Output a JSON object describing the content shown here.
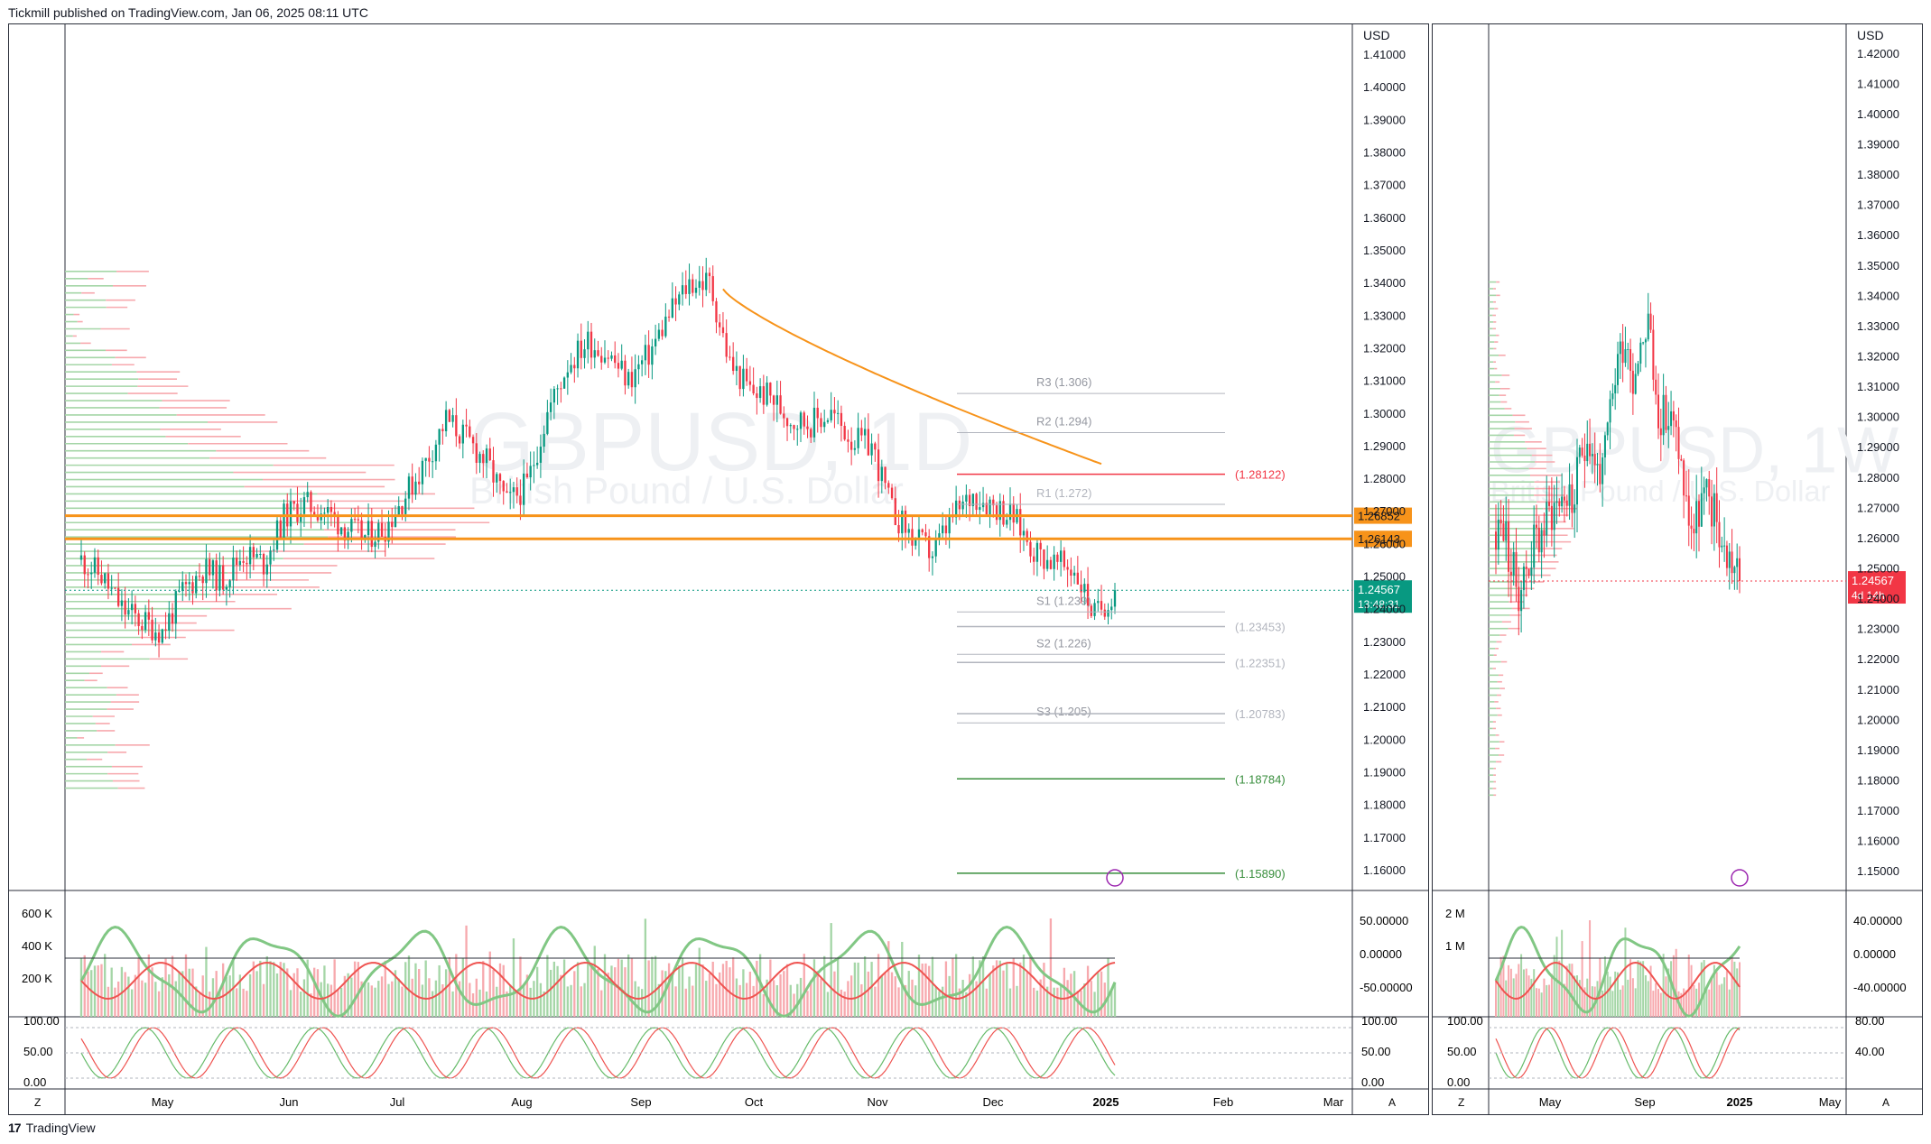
{
  "header": {
    "published": "Tickmill published on TradingView.com, Jan 06, 2025 08:11 UTC"
  },
  "footer": {
    "brand": "TradingView",
    "logo": "17"
  },
  "left": {
    "currency": "USD",
    "watermark_symbol": "GBPUSD, 1D",
    "watermark_name": "British Pound / U.S. Dollar",
    "price_ticks": [
      "1.41000",
      "1.40000",
      "1.39000",
      "1.38000",
      "1.37000",
      "1.36000",
      "1.35000",
      "1.34000",
      "1.33000",
      "1.32000",
      "1.31000",
      "1.30000",
      "1.29000",
      "1.28000",
      "1.27000",
      "1.26000",
      "1.25000",
      "1.24000",
      "1.23000",
      "1.22000",
      "1.21000",
      "1.20000",
      "1.19000",
      "1.18000",
      "1.17000",
      "1.16000"
    ],
    "price_tags": [
      {
        "label": "1.26852",
        "price": 1.26852,
        "color": "#f7931a"
      },
      {
        "label": "1.26143",
        "price": 1.26143,
        "color": "#f7931a"
      }
    ],
    "last_price": {
      "label": "1.24567",
      "countdown": "13:48:31",
      "color": "#089981",
      "price": 1.24567
    },
    "pivots": [
      {
        "label": "R3 (1.306)",
        "price": 1.306,
        "color": "#9598a1"
      },
      {
        "label": "R2 (1.294)",
        "price": 1.294,
        "color": "#9598a1"
      },
      {
        "label": "R1 (1.272)",
        "price": 1.272,
        "color": "#b2b5be"
      },
      {
        "label": "S1 (1.239)",
        "price": 1.239,
        "color": "#9598a1"
      },
      {
        "label": "S2 (1.226)",
        "price": 1.226,
        "color": "#9598a1"
      },
      {
        "label": "S3 (1.205)",
        "price": 1.205,
        "color": "#9598a1"
      }
    ],
    "levels": [
      {
        "label": "(1.28122)",
        "price": 1.28122,
        "color": "#f23645"
      },
      {
        "label": "(1.23453)",
        "price": 1.23453,
        "color": "#b2b5be"
      },
      {
        "label": "(1.22351)",
        "price": 1.22351,
        "color": "#b2b5be"
      },
      {
        "label": "(1.20783)",
        "price": 1.20783,
        "color": "#b2b5be"
      },
      {
        "label": "(1.18784)",
        "price": 1.18784,
        "color": "#388e3c"
      },
      {
        "label": "(1.15890)",
        "price": 1.1589,
        "color": "#388e3c"
      }
    ],
    "x_labels": [
      "May",
      "Jun",
      "Jul",
      "Aug",
      "Sep",
      "Oct",
      "Nov",
      "Dec",
      "2025",
      "Feb",
      "Mar"
    ],
    "vol_ticks": [
      "600 K",
      "400 K",
      "200 K"
    ],
    "osc_ticks": [
      "50.00000",
      "0.00000",
      "-50.00000"
    ],
    "stoch_ticks": [
      "100.00",
      "50.00",
      "0.00"
    ],
    "stoch_right": [
      "100.00",
      "50.00",
      "0.00"
    ]
  },
  "right": {
    "currency": "USD",
    "watermark_symbol": "GBPUSD, 1W",
    "watermark_name": "British Pound / U.S. Dollar",
    "price_ticks": [
      "1.42000",
      "1.41000",
      "1.40000",
      "1.39000",
      "1.38000",
      "1.37000",
      "1.36000",
      "1.35000",
      "1.34000",
      "1.33000",
      "1.32000",
      "1.31000",
      "1.30000",
      "1.29000",
      "1.28000",
      "1.27000",
      "1.26000",
      "1.25000",
      "1.24000",
      "1.23000",
      "1.22000",
      "1.21000",
      "1.20000",
      "1.19000",
      "1.18000",
      "1.17000",
      "1.16000",
      "1.15000"
    ],
    "last_price": {
      "label": "1.24567",
      "countdown": "4d 14h",
      "color": "#f23645",
      "price": 1.24567
    },
    "x_labels": [
      "May",
      "Sep",
      "2025",
      "May"
    ],
    "vol_ticks": [
      "2 M",
      "1 M"
    ],
    "osc_ticks": [
      "40.00000",
      "0.00000",
      "-40.00000"
    ],
    "stoch_ticks": [
      "100.00",
      "50.00",
      "0.00"
    ],
    "stoch_right": [
      "80.00",
      "40.00"
    ]
  },
  "colors": {
    "up": "#089981",
    "down": "#f23645",
    "ma": "#f7931a",
    "vp_up": "#66bb6a",
    "vp_down": "#f7525f"
  },
  "chart_data": [
    {
      "type": "candlestick",
      "symbol": "GBPUSD",
      "timeframe": "1D",
      "currency": "USD",
      "ylim": [
        1.155,
        1.415
      ],
      "x_labels": [
        "May",
        "Jun",
        "Jul",
        "Aug",
        "Sep",
        "Oct",
        "Nov",
        "Dec",
        "2025",
        "Feb",
        "Mar"
      ],
      "close_path": [
        [
          "Apr",
          1.255
        ],
        [
          "Apr",
          1.25
        ],
        [
          "Apr",
          1.24
        ],
        [
          "Apr",
          1.236
        ],
        [
          "Apr",
          1.233
        ],
        [
          "May",
          1.245
        ],
        [
          "May",
          1.252
        ],
        [
          "May",
          1.249
        ],
        [
          "May",
          1.257
        ],
        [
          "May",
          1.254
        ],
        [
          "Jun",
          1.268
        ],
        [
          "Jun",
          1.272
        ],
        [
          "Jun",
          1.27
        ],
        [
          "Jun",
          1.265
        ],
        [
          "Jun",
          1.262
        ],
        [
          "Jul",
          1.265
        ],
        [
          "Jul",
          1.275
        ],
        [
          "Jul",
          1.285
        ],
        [
          "Jul",
          1.298
        ],
        [
          "Jul",
          1.292
        ],
        [
          "Aug",
          1.285
        ],
        [
          "Aug",
          1.272
        ],
        [
          "Aug",
          1.278
        ],
        [
          "Aug",
          1.3
        ],
        [
          "Aug",
          1.315
        ],
        [
          "Aug",
          1.322
        ],
        [
          "Sep",
          1.318
        ],
        [
          "Sep",
          1.31
        ],
        [
          "Sep",
          1.318
        ],
        [
          "Sep",
          1.33
        ],
        [
          "Sep",
          1.34
        ],
        [
          "Oct",
          1.34
        ],
        [
          "Oct",
          1.315
        ],
        [
          "Oct",
          1.307
        ],
        [
          "Oct",
          1.305
        ],
        [
          "Oct",
          1.298
        ],
        [
          "Oct",
          1.297
        ],
        [
          "Oct",
          1.3
        ],
        [
          "Nov",
          1.292
        ],
        [
          "Nov",
          1.29
        ],
        [
          "Nov",
          1.27
        ],
        [
          "Nov",
          1.262
        ],
        [
          "Nov",
          1.257
        ],
        [
          "Nov",
          1.268
        ],
        [
          "Dec",
          1.275
        ],
        [
          "Dec",
          1.272
        ],
        [
          "Dec",
          1.268
        ],
        [
          "Dec",
          1.258
        ],
        [
          "Dec",
          1.254
        ],
        [
          "Dec",
          1.252
        ],
        [
          "2025",
          1.238
        ],
        [
          "2025",
          1.24567
        ]
      ],
      "moving_average": [
        [
          1.335,
          "Oct"
        ],
        [
          1.3,
          "Nov"
        ],
        [
          1.284,
          "Dec"
        ]
      ],
      "pivots": {
        "R3": 1.306,
        "R2": 1.294,
        "R1": 1.272,
        "S1": 1.239,
        "S2": 1.226,
        "S3": 1.205
      },
      "levels": [
        1.28122,
        1.26852,
        1.26143,
        1.23453,
        1.22351,
        1.20783,
        1.18784,
        1.1589
      ],
      "last_price": 1.24567,
      "volume_axis": [
        "600 K",
        "400 K",
        "200 K"
      ],
      "oscillator_axis": [
        "50.00000",
        "0.00000",
        "-50.00000"
      ],
      "stochastic_axis": [
        "100.00",
        "50.00",
        "0.00"
      ]
    },
    {
      "type": "candlestick",
      "symbol": "GBPUSD",
      "timeframe": "1W",
      "currency": "USD",
      "ylim": [
        1.145,
        1.425
      ],
      "x_labels": [
        "May",
        "Sep",
        "2025",
        "May"
      ],
      "close_path": [
        [
          "Apr",
          1.262
        ],
        [
          "Apr",
          1.265
        ],
        [
          "Apr",
          1.25
        ],
        [
          "Apr",
          1.243
        ],
        [
          "Apr",
          1.25
        ],
        [
          "May",
          1.258
        ],
        [
          "May",
          1.262
        ],
        [
          "May",
          1.268
        ],
        [
          "May",
          1.272
        ],
        [
          "May",
          1.275
        ],
        [
          "Jul",
          1.27
        ],
        [
          "Jul",
          1.283
        ],
        [
          "Jul",
          1.296
        ],
        [
          "Aug",
          1.285
        ],
        [
          "Aug",
          1.28
        ],
        [
          "Aug",
          1.3
        ],
        [
          "Sep",
          1.32
        ],
        [
          "Sep",
          1.327
        ],
        [
          "Sep",
          1.314
        ],
        [
          "Sep",
          1.325
        ],
        [
          "Oct",
          1.333
        ],
        [
          "Oct",
          1.305
        ],
        [
          "Oct",
          1.3
        ],
        [
          "Oct",
          1.298
        ],
        [
          "Nov",
          1.29
        ],
        [
          "Nov",
          1.27
        ],
        [
          "Nov",
          1.262
        ],
        [
          "Nov",
          1.272
        ],
        [
          "Dec",
          1.272
        ],
        [
          "Dec",
          1.265
        ],
        [
          "Dec",
          1.255
        ],
        [
          "2025",
          1.252
        ],
        [
          "2025",
          1.24567
        ]
      ],
      "last_price": 1.24567,
      "volume_axis": [
        "2 M",
        "1 M"
      ],
      "oscillator_axis": [
        "40.00000",
        "0.00000",
        "-40.00000"
      ],
      "stochastic_axis": [
        "80.00",
        "40.00"
      ]
    }
  ]
}
